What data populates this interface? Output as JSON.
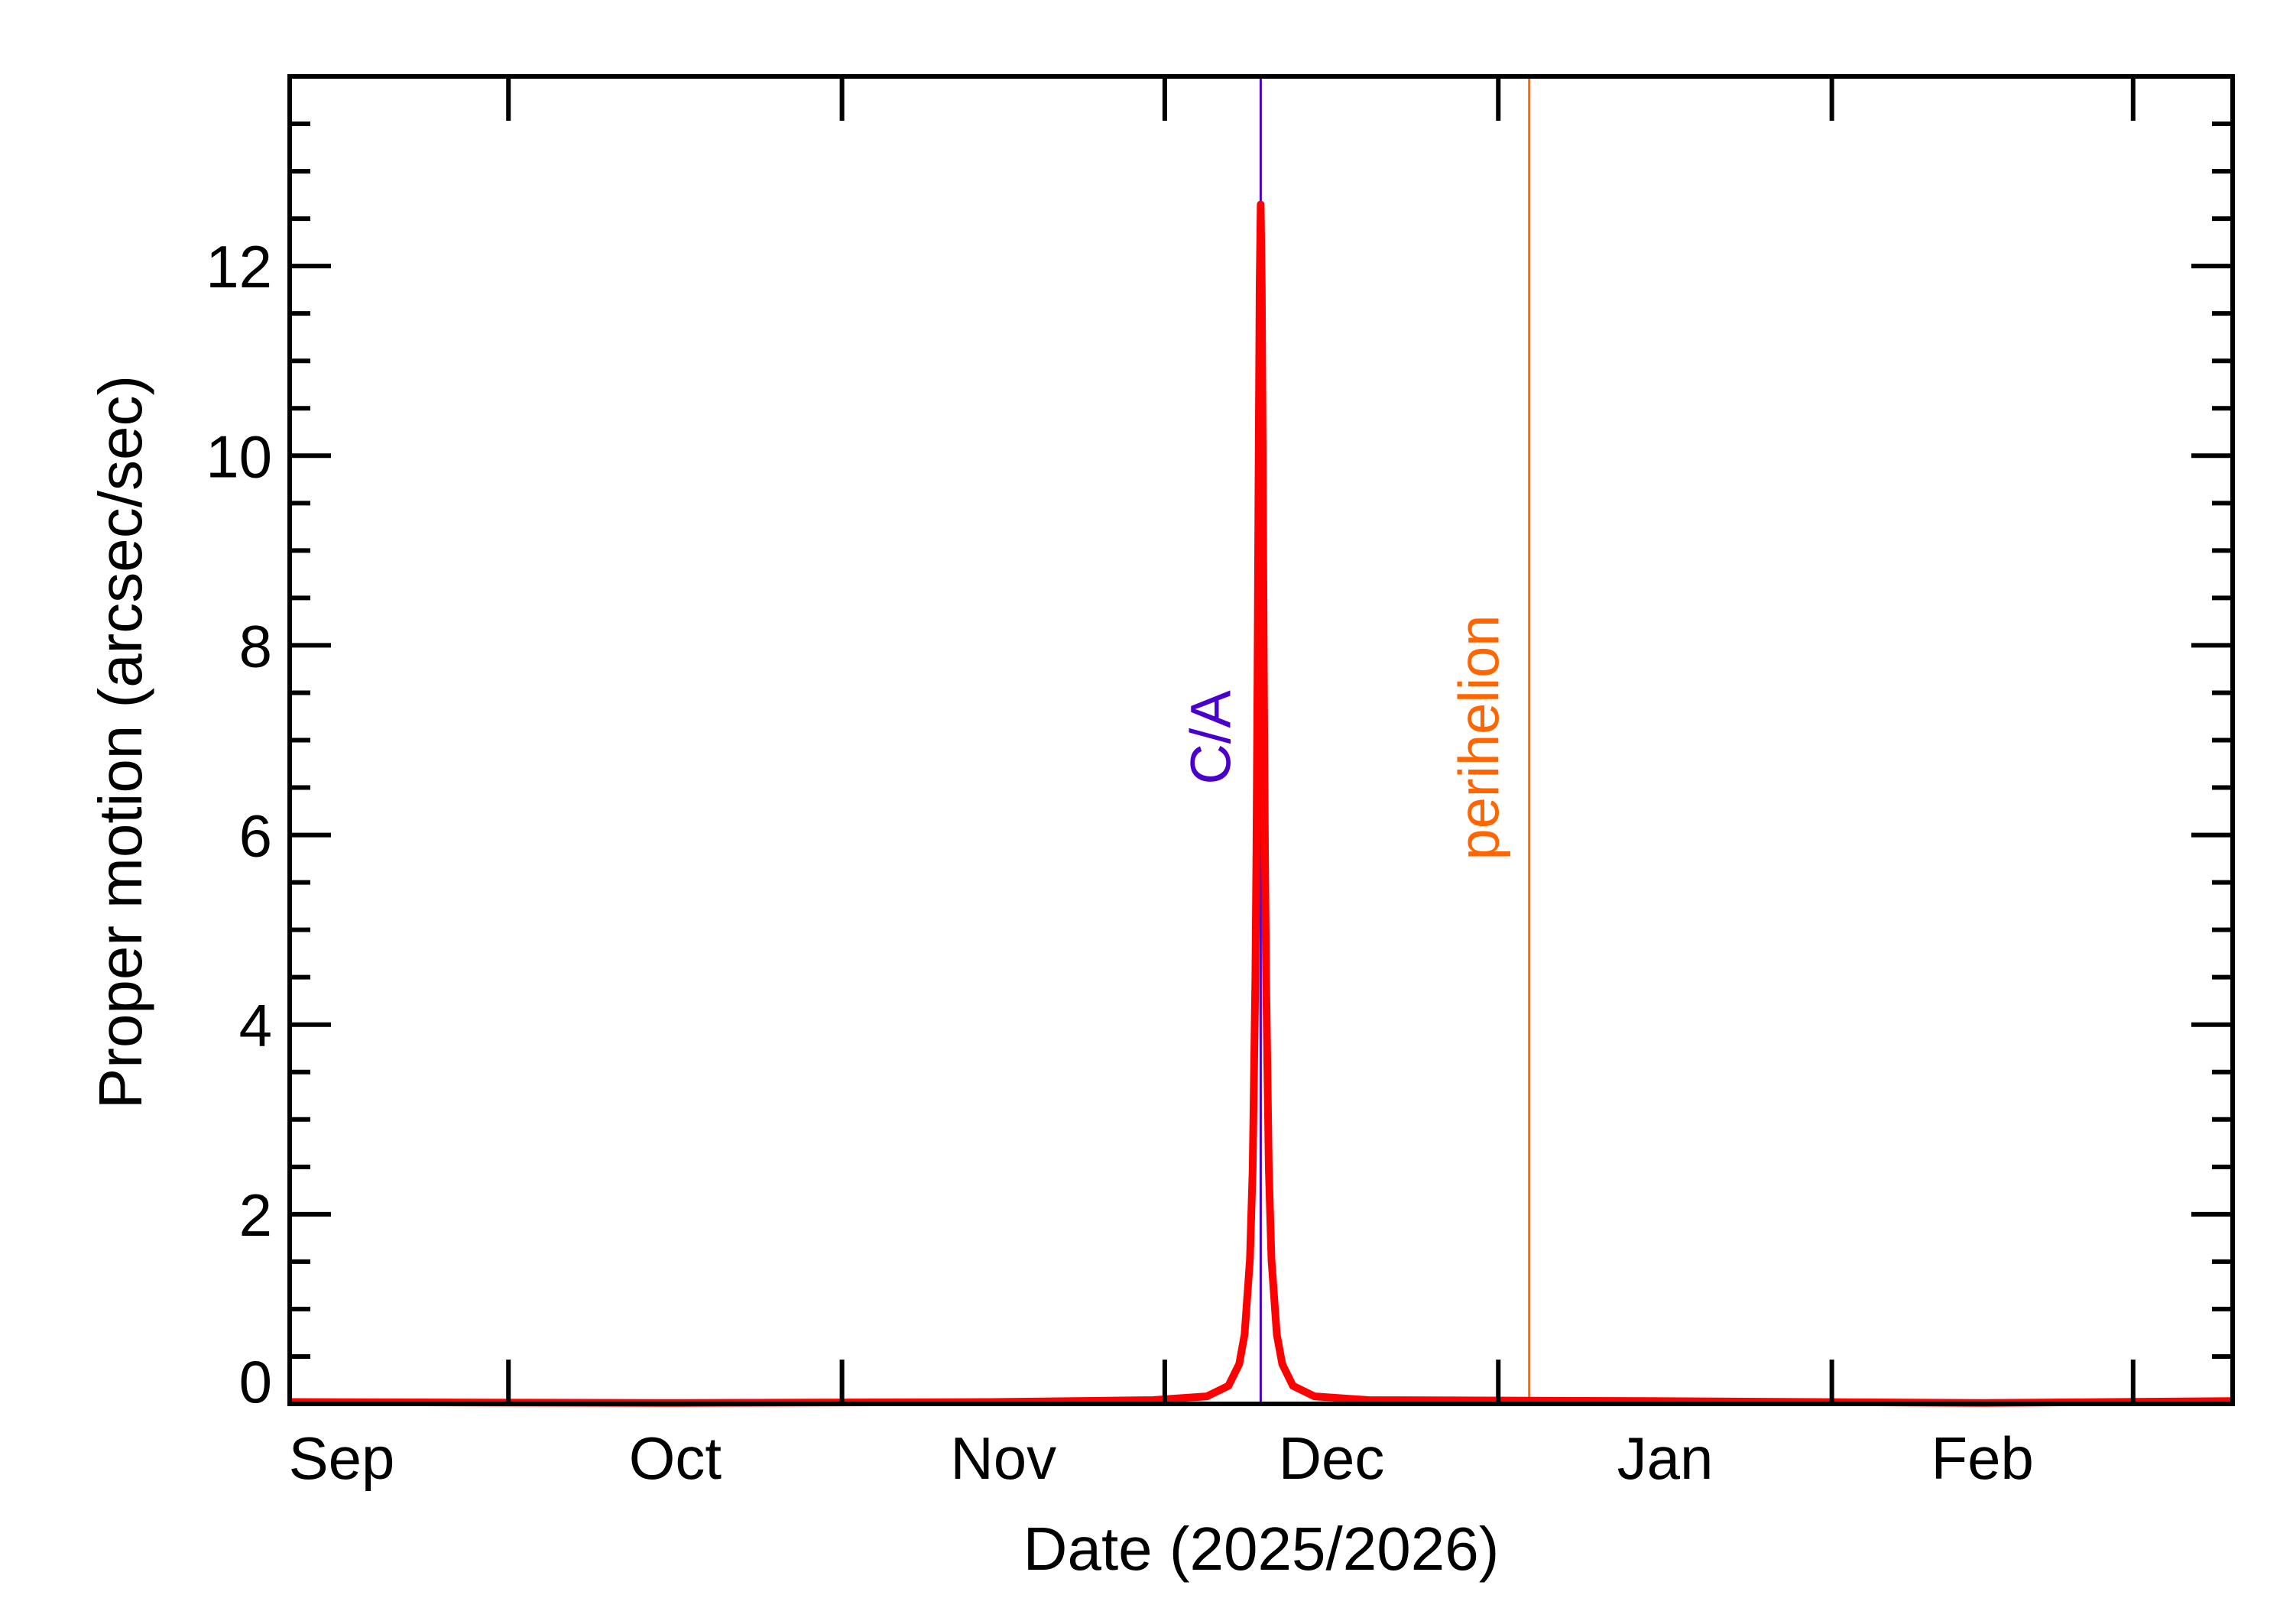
{
  "chart_data": {
    "type": "line",
    "title": "",
    "xlabel": "Date (2025/2026)",
    "ylabel": "Proper motion (arcsec/sec)",
    "xlim": [
      "2025-09-10T16:00",
      "2026-03-10T06:00"
    ],
    "ylim": [
      0,
      14
    ],
    "x_ticks": [
      "2025-10-01",
      "2025-11-01",
      "2025-12-01",
      "2026-01-01",
      "2026-02-01",
      "2026-03-01"
    ],
    "x_tick_labels": [
      {
        "label": "Sep",
        "at": "2025-09-15T12:00"
      },
      {
        "label": "Oct",
        "at": "2025-10-16T12:00"
      },
      {
        "label": "Nov",
        "at": "2025-11-16T00:00"
      },
      {
        "label": "Dec",
        "at": "2025-12-16T12:00"
      },
      {
        "label": "Jan",
        "at": "2026-01-16T12:00"
      },
      {
        "label": "Feb",
        "at": "2026-02-15T00:00"
      }
    ],
    "y_ticks": [
      0,
      2,
      4,
      6,
      8,
      10,
      12
    ],
    "y_tick_labels": [
      "0",
      "2",
      "4",
      "6",
      "8",
      "10",
      "12"
    ],
    "y_minor_step": 0.5,
    "grid": false,
    "series": [
      {
        "color": "#ff0000",
        "points": [
          [
            "2025-09-10T16:00",
            0.02
          ],
          [
            "2025-10-15T00:00",
            0.01
          ],
          [
            "2025-11-15T00:00",
            0.02
          ],
          [
            "2025-11-29T22:00",
            0.04
          ],
          [
            "2025-12-04T22:00",
            0.08
          ],
          [
            "2025-12-06T22:00",
            0.19
          ],
          [
            "2025-12-07T22:00",
            0.42
          ],
          [
            "2025-12-08T10:00",
            0.73
          ],
          [
            "2025-12-08T22:00",
            1.52
          ],
          [
            "2025-12-09T04:00",
            2.48
          ],
          [
            "2025-12-09T10:00",
            4.48
          ],
          [
            "2025-12-09T12:24",
            5.83
          ],
          [
            "2025-12-09T14:48",
            7.63
          ],
          [
            "2025-12-09T17:12",
            9.79
          ],
          [
            "2025-12-09T19:36",
            11.79
          ],
          [
            "2025-12-09T22:00",
            12.65
          ],
          [
            "2025-12-10T00:24",
            11.79
          ],
          [
            "2025-12-10T02:48",
            9.79
          ],
          [
            "2025-12-10T05:12",
            7.63
          ],
          [
            "2025-12-10T07:36",
            5.83
          ],
          [
            "2025-12-10T10:00",
            4.48
          ],
          [
            "2025-12-10T16:00",
            2.48
          ],
          [
            "2025-12-10T22:00",
            1.52
          ],
          [
            "2025-12-11T10:00",
            0.73
          ],
          [
            "2025-12-11T22:00",
            0.42
          ],
          [
            "2025-12-12T22:00",
            0.19
          ],
          [
            "2025-12-14T22:00",
            0.08
          ],
          [
            "2025-12-19T22:00",
            0.04
          ],
          [
            "2026-01-15T00:00",
            0.03
          ],
          [
            "2026-02-15T00:00",
            0.01
          ],
          [
            "2026-03-10T06:00",
            0.03
          ]
        ]
      }
    ],
    "annotations": [
      {
        "label": "C/A",
        "date": "2025-12-09T22:00",
        "color": "#4a00cc"
      },
      {
        "label": "perihelion",
        "date": "2026-01-03T21:00",
        "color": "#ff6600"
      }
    ]
  }
}
